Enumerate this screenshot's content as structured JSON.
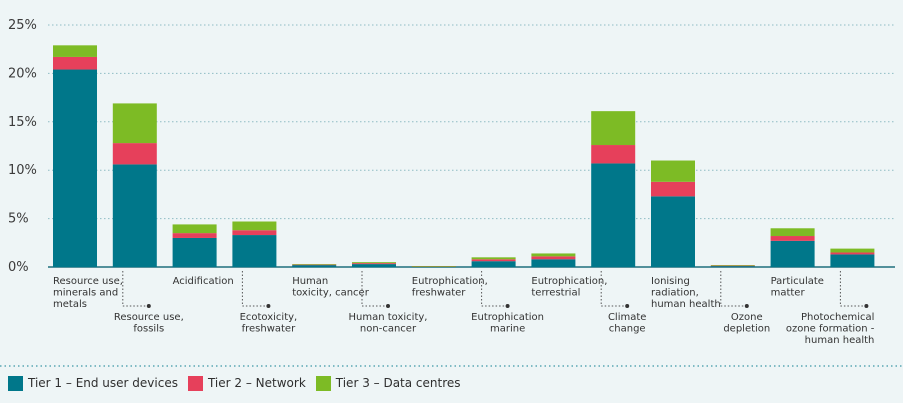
{
  "colors": {
    "tier1": "#00778a",
    "tier2": "#e6405b",
    "tier3": "#7dbb25"
  },
  "chart_data": {
    "type": "bar",
    "stacked": true,
    "ylim": [
      0,
      25
    ],
    "yticks": [
      "0%",
      "5%",
      "10%",
      "15%",
      "20%",
      "25%"
    ],
    "grid": true,
    "legend_position": "bottom",
    "categories": [
      "Resource use, minerals and metals",
      "Resource use, fossils",
      "Acidification",
      "Ecotoxicity, freshwater",
      "Human toxicity, cancer",
      "Human toxicity, non-cancer",
      "Eutrophication, freshwater",
      "Eutrophication marine",
      "Eutrophication, terrestrial",
      "Climate change",
      "Ionising radiation, human health",
      "Ozone depletion",
      "Particulate matter",
      "Photochemical ozone formation - human health"
    ],
    "category_labels": [
      [
        "Resource use,",
        "minerals and",
        "metals"
      ],
      [
        "Resource use,",
        "fossils"
      ],
      [
        "Acidification"
      ],
      [
        "Ecotoxicity,",
        "freshwater"
      ],
      [
        "Human",
        "toxicity, cancer"
      ],
      [
        "Human toxicity,",
        "non-cancer"
      ],
      [
        "Eutrophication,",
        "freshwater"
      ],
      [
        "Eutrophication",
        "marine"
      ],
      [
        "Eutrophication,",
        "terrestrial"
      ],
      [
        "Climate",
        "change"
      ],
      [
        "Ionising",
        "radiation,",
        "human health"
      ],
      [
        "Ozone",
        "depletion"
      ],
      [
        "Particulate",
        "matter"
      ],
      [
        "Photochemical",
        "ozone formation -",
        "human health"
      ]
    ],
    "series": [
      {
        "name": "Tier 1 – End user devices",
        "values": [
          20.4,
          10.6,
          3.0,
          3.3,
          0.2,
          0.3,
          0.05,
          0.6,
          0.8,
          10.7,
          7.3,
          0.1,
          2.7,
          1.3
        ]
      },
      {
        "name": "Tier 2 – Network",
        "values": [
          1.3,
          2.2,
          0.5,
          0.5,
          0.05,
          0.1,
          0.03,
          0.2,
          0.3,
          1.9,
          1.5,
          0.05,
          0.5,
          0.2
        ]
      },
      {
        "name": "Tier 3 – Data centres",
        "values": [
          1.2,
          4.1,
          0.9,
          0.9,
          0.05,
          0.1,
          0.02,
          0.2,
          0.3,
          3.5,
          2.2,
          0.05,
          0.8,
          0.4
        ]
      }
    ]
  }
}
